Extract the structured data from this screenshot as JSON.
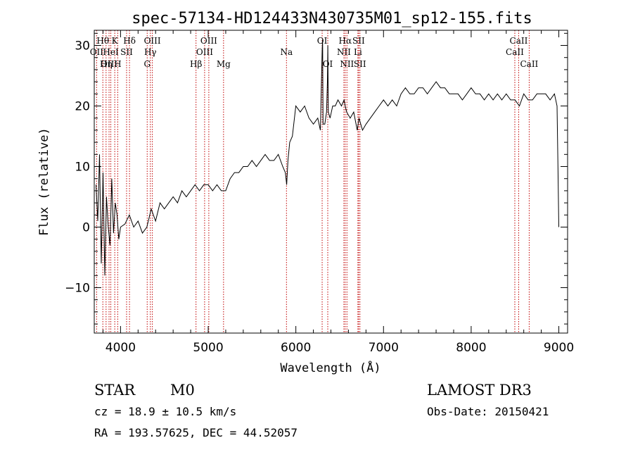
{
  "chart_data": {
    "type": "line",
    "title": "spec-57134-HD124433N430735M01_sp12-155.fits",
    "xlabel": "Wavelength (Å)",
    "ylabel": "Flux (relative)",
    "xlim": [
      3700,
      9100
    ],
    "ylim": [
      -17.5,
      32.5
    ],
    "xticks": [
      4000,
      5000,
      6000,
      7000,
      8000,
      9000
    ],
    "yticks": [
      -10,
      0,
      10,
      20,
      30
    ],
    "xtick_labels": [
      "4000",
      "5000",
      "6000",
      "7000",
      "8000",
      "9000"
    ],
    "ytick_labels": [
      "−10",
      "0",
      "10",
      "20",
      "30"
    ],
    "grid": false,
    "series": [
      {
        "x": [
          3720,
          3740,
          3760,
          3780,
          3800,
          3820,
          3840,
          3860,
          3880,
          3900,
          3920,
          3940,
          3960,
          3980,
          4000,
          4050,
          4100,
          4150,
          4200,
          4250,
          4300,
          4350,
          4400,
          4450,
          4500,
          4550,
          4600,
          4650,
          4700,
          4750,
          4800,
          4850,
          4900,
          4950,
          5000,
          5050,
          5100,
          5150,
          5200,
          5250,
          5300,
          5350,
          5400,
          5450,
          5500,
          5550,
          5600,
          5650,
          5700,
          5750,
          5800,
          5850,
          5880,
          5895,
          5910,
          5930,
          5960,
          6000,
          6050,
          6100,
          6150,
          6200,
          6250,
          6280,
          6300,
          6305,
          6310,
          6330,
          6350,
          6360,
          6365,
          6370,
          6390,
          6420,
          6450,
          6480,
          6520,
          6550,
          6563,
          6580,
          6620,
          6660,
          6700,
          6720,
          6760,
          6800,
          6850,
          6900,
          6950,
          7000,
          7050,
          7100,
          7150,
          7200,
          7250,
          7300,
          7350,
          7400,
          7450,
          7500,
          7550,
          7600,
          7650,
          7700,
          7750,
          7800,
          7850,
          7900,
          7950,
          8000,
          8050,
          8100,
          8150,
          8200,
          8250,
          8300,
          8350,
          8400,
          8450,
          8500,
          8550,
          8600,
          8650,
          8700,
          8750,
          8800,
          8850,
          8900,
          8950,
          8980,
          8990,
          9000
        ],
        "y": [
          7,
          1,
          12,
          -6,
          9,
          -8,
          5,
          0,
          -3,
          8,
          -1,
          4,
          2,
          -2,
          0,
          0.5,
          2,
          0,
          1,
          -1,
          0,
          3,
          1,
          4,
          3,
          4,
          5,
          4,
          6,
          5,
          6,
          7,
          6,
          7,
          7,
          6,
          7,
          6,
          6,
          8,
          9,
          9,
          10,
          10,
          11,
          10,
          11,
          12,
          11,
          11,
          12,
          10,
          9,
          7,
          11,
          14,
          15,
          20,
          19,
          20,
          18,
          17,
          18,
          16,
          29,
          31,
          17,
          17,
          19,
          24,
          30,
          19,
          18,
          20,
          20,
          21,
          20,
          21,
          20,
          19,
          18,
          19,
          16,
          18,
          16,
          17,
          18,
          19,
          20,
          21,
          20,
          21,
          20,
          22,
          23,
          22,
          22,
          23,
          23,
          22,
          23,
          24,
          23,
          23,
          22,
          22,
          22,
          21,
          22,
          23,
          22,
          22,
          21,
          22,
          21,
          22,
          21,
          22,
          21,
          21,
          20,
          22,
          21,
          21,
          22,
          22,
          22,
          21,
          22,
          20,
          10,
          0
        ]
      }
    ]
  },
  "line_marks": [
    {
      "label": "Hθ",
      "x": 3798,
      "row": 1
    },
    {
      "label": "OII",
      "x": 3727,
      "row": 2
    },
    {
      "label": "OIII",
      "x": 3869,
      "row": 3
    },
    {
      "label": "K",
      "x": 3934,
      "row": 1
    },
    {
      "label": "HeI",
      "x": 3889,
      "row": 2
    },
    {
      "label": "Hη",
      "x": 3835,
      "row": 3
    },
    {
      "label": "SII",
      "x": 4069,
      "row": 2
    },
    {
      "label": "H",
      "x": 3968,
      "row": 3
    },
    {
      "label": "Hδ",
      "x": 4102,
      "row": 1
    },
    {
      "label": "OIII",
      "x": 4363,
      "row": 1
    },
    {
      "label": "Hγ",
      "x": 4340,
      "row": 2
    },
    {
      "label": "G",
      "x": 4304,
      "row": 3
    },
    {
      "label": "OIII",
      "x": 5007,
      "row": 1
    },
    {
      "label": "OIII",
      "x": 4959,
      "row": 2
    },
    {
      "label": "Hβ",
      "x": 4861,
      "row": 3
    },
    {
      "label": "Mg",
      "x": 5175,
      "row": 3
    },
    {
      "label": "Na",
      "x": 5893,
      "row": 2
    },
    {
      "label": "OI",
      "x": 6300,
      "row": 1
    },
    {
      "label": "OI",
      "x": 6364,
      "row": 3
    },
    {
      "label": "Hα",
      "x": 6563,
      "row": 1
    },
    {
      "label": "SII",
      "x": 6716,
      "row": 1
    },
    {
      "label": "NII",
      "x": 6548,
      "row": 2
    },
    {
      "label": "Li",
      "x": 6708,
      "row": 2
    },
    {
      "label": "NII",
      "x": 6583,
      "row": 3
    },
    {
      "label": "SII",
      "x": 6731,
      "row": 3
    },
    {
      "label": "CaII",
      "x": 8542,
      "row": 1
    },
    {
      "label": "CaII",
      "x": 8498,
      "row": 2
    },
    {
      "label": "CaII",
      "x": 8662,
      "row": 3
    }
  ],
  "footer": {
    "class_label": "STAR",
    "subclass": "M0",
    "survey": "LAMOST DR3",
    "cz": "cz = 18.9 ± 10.5 km/s",
    "obs_date": "Obs-Date: 20150421",
    "coords": "RA = 193.57625, DEC =  44.52057"
  },
  "colors": {
    "spectrum": "#000000",
    "line_marker": "#c00000",
    "axes": "#000000"
  }
}
